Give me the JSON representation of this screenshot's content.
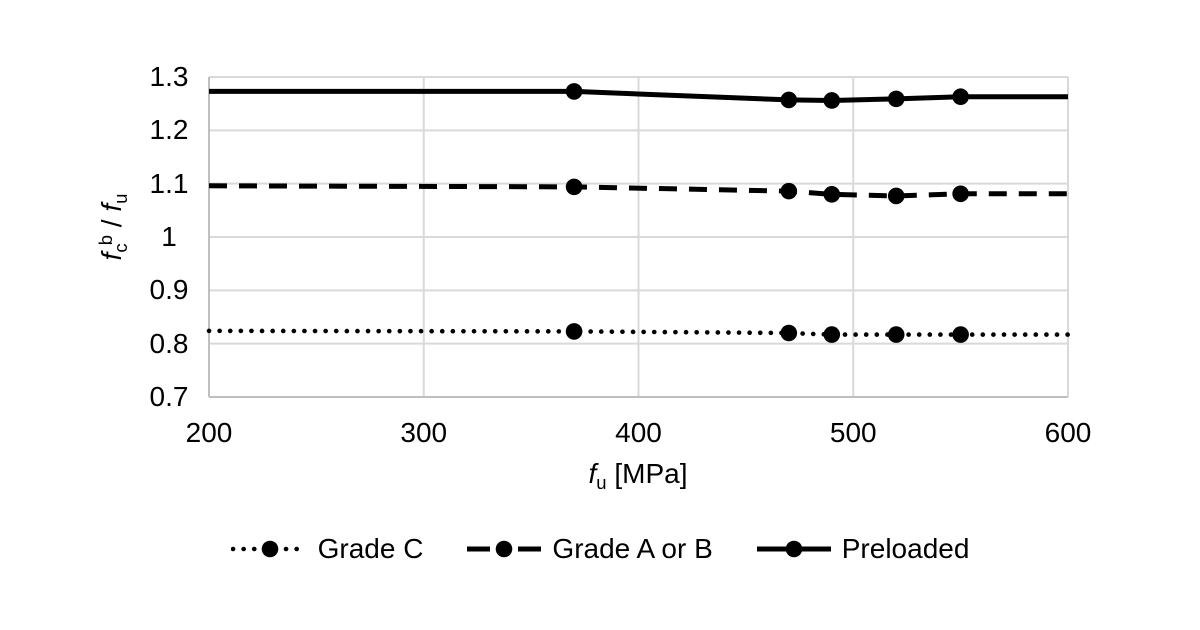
{
  "colors": {
    "series": "#000000",
    "grid": "#d9d9d9",
    "axis": "#bfbfbf",
    "text": "#000000",
    "background": "#ffffff"
  },
  "labels": {
    "y_title": {
      "base1": "f",
      "sub1": "c",
      "sup1": "b",
      "sep": " / ",
      "base2": "f",
      "sub2": "u"
    },
    "x_title": {
      "base": "f",
      "sub": "u",
      "unit": " [MPa]"
    }
  },
  "legend": {
    "position": "bottom-center",
    "items": [
      {
        "label": "Grade C",
        "style": "dotted"
      },
      {
        "label": "Grade A or B",
        "style": "dashed"
      },
      {
        "label": "Preloaded",
        "style": "solid"
      }
    ]
  },
  "chart_data": {
    "type": "line",
    "title": "",
    "xlabel": "fu [MPa]",
    "ylabel": "fcb / fu",
    "xlim": [
      200,
      600
    ],
    "ylim": [
      0.7,
      1.3
    ],
    "x_ticks": [
      "200",
      "300",
      "400",
      "500",
      "600"
    ],
    "y_ticks": [
      "1.3",
      "1.2",
      "1.1",
      "1",
      "0.9",
      "0.8",
      "0.7"
    ],
    "grid": true,
    "legend_position": "bottom",
    "series": [
      {
        "name": "Grade C",
        "style": "dotted",
        "color": "#000000",
        "line_x": [
          200,
          370,
          470,
          490,
          520,
          550,
          600
        ],
        "line_y": [
          0.824,
          0.823,
          0.82,
          0.817,
          0.817,
          0.817,
          0.817
        ],
        "marker_x": [
          370,
          470,
          490,
          520,
          550
        ],
        "marker_y": [
          0.823,
          0.82,
          0.817,
          0.817,
          0.817
        ]
      },
      {
        "name": "Grade A or B",
        "style": "dashed",
        "color": "#000000",
        "line_x": [
          200,
          370,
          470,
          490,
          520,
          550,
          600
        ],
        "line_y": [
          1.096,
          1.094,
          1.086,
          1.08,
          1.077,
          1.081,
          1.081
        ],
        "marker_x": [
          370,
          470,
          490,
          520,
          550
        ],
        "marker_y": [
          1.094,
          1.086,
          1.08,
          1.077,
          1.081
        ]
      },
      {
        "name": "Preloaded",
        "style": "solid",
        "color": "#000000",
        "line_x": [
          200,
          370,
          470,
          490,
          520,
          550,
          600
        ],
        "line_y": [
          1.273,
          1.273,
          1.257,
          1.256,
          1.259,
          1.263,
          1.263
        ],
        "marker_x": [
          370,
          470,
          490,
          520,
          550
        ],
        "marker_y": [
          1.273,
          1.257,
          1.256,
          1.259,
          1.263
        ]
      }
    ]
  }
}
